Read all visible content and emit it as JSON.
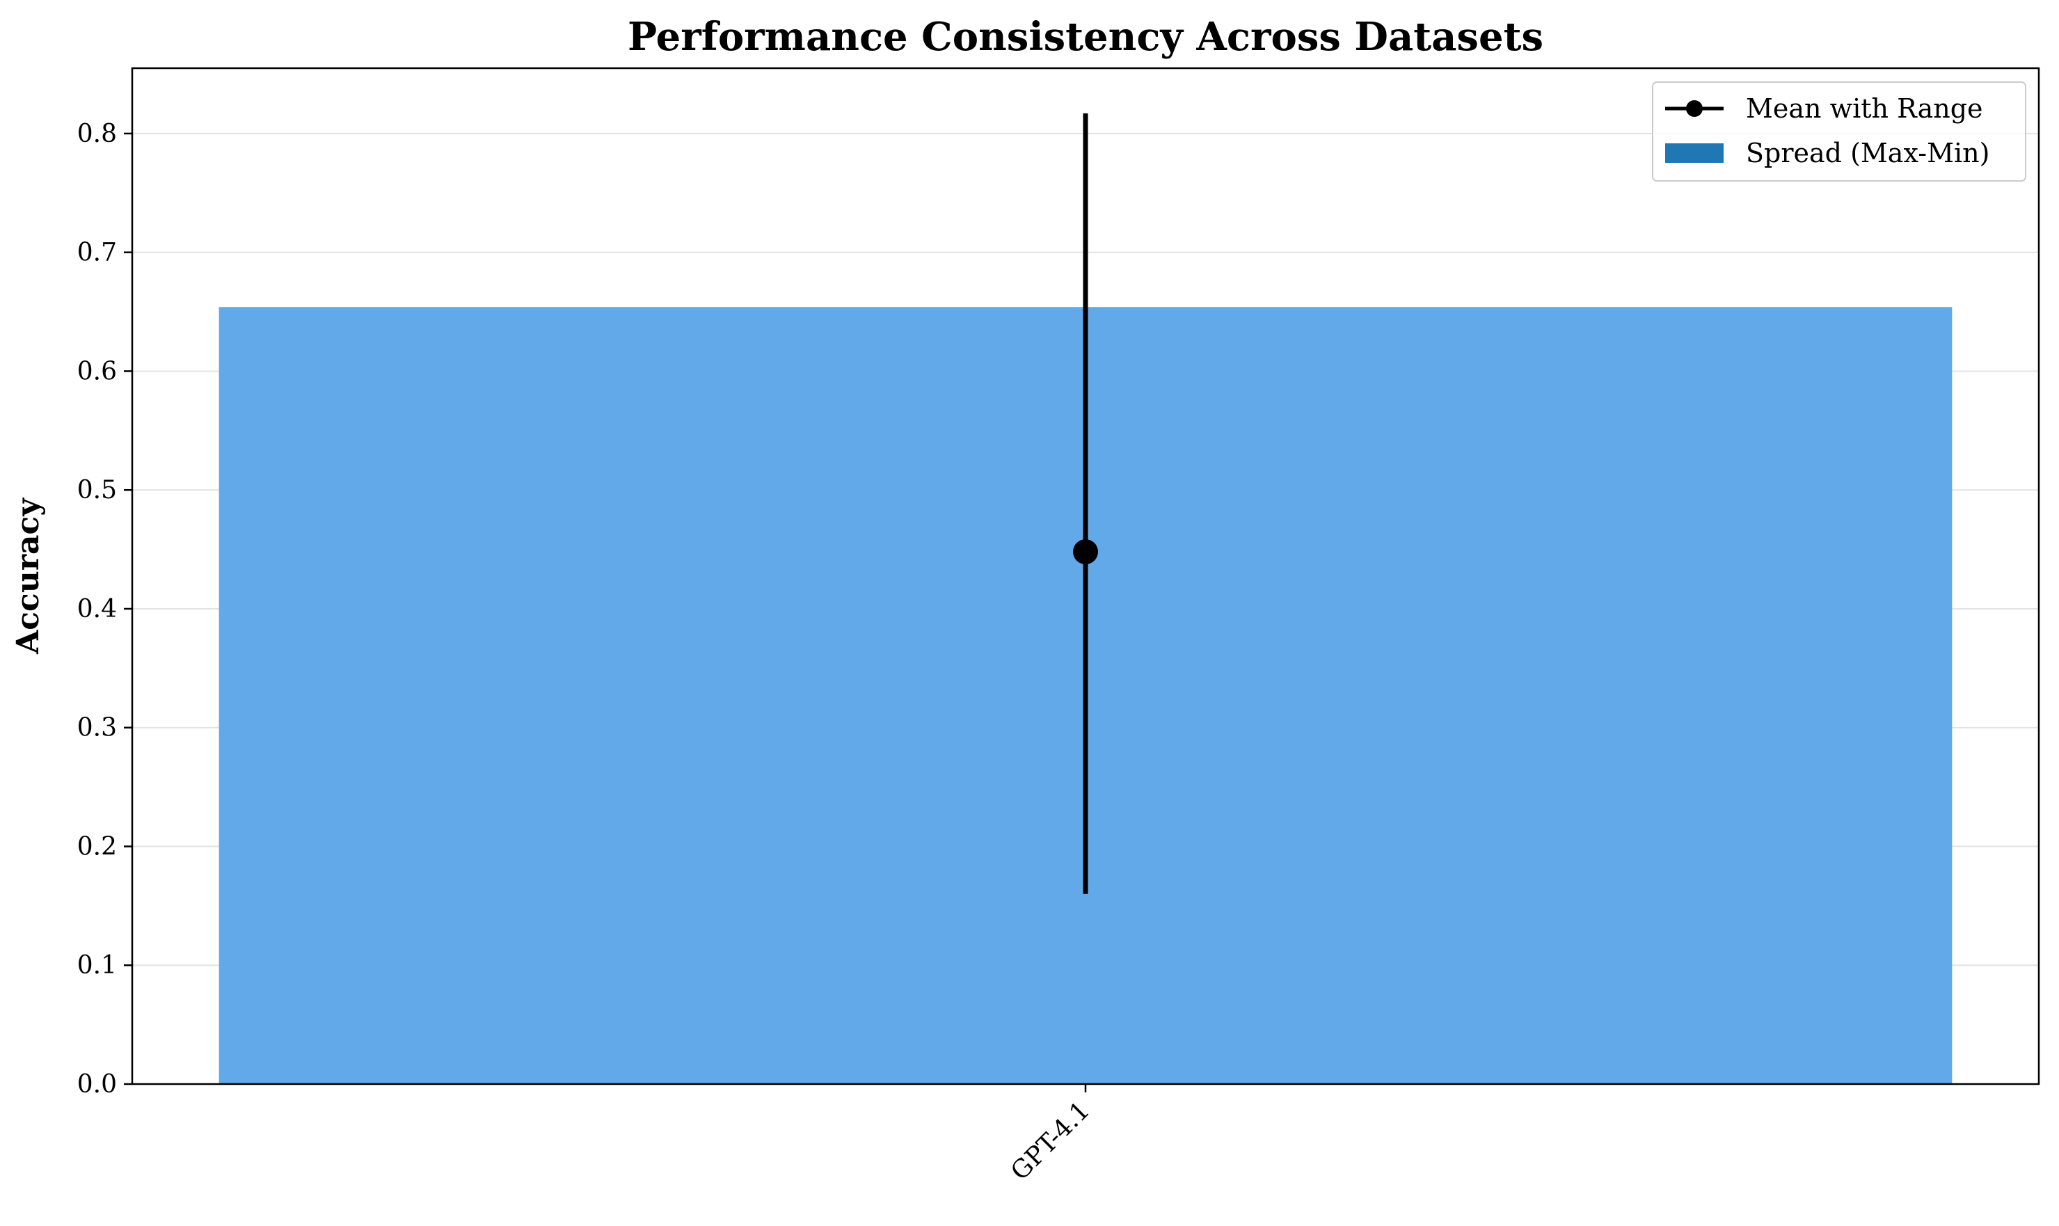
{
  "chart_data": {
    "type": "bar",
    "title": "Performance Consistency Across Datasets",
    "xlabel": "",
    "ylabel": "Accuracy",
    "categories": [
      "GPT-4.1"
    ],
    "series": [
      {
        "name": "Spread (Max-Min)",
        "kind": "bar",
        "color": "#62a9e9",
        "legend_color": "#1f77b4",
        "values": [
          0.654
        ]
      },
      {
        "name": "Mean with Range",
        "kind": "point-with-range",
        "color": "#000000",
        "values": [
          0.448
        ],
        "min": [
          0.16
        ],
        "max": [
          0.817
        ]
      }
    ],
    "ylim": [
      0,
      0.855
    ],
    "yticks": [
      0.0,
      0.1,
      0.2,
      0.3,
      0.4,
      0.5,
      0.6,
      0.7,
      0.8
    ],
    "ytick_labels": [
      "0.0",
      "0.1",
      "0.2",
      "0.3",
      "0.4",
      "0.5",
      "0.6",
      "0.7",
      "0.8"
    ],
    "xtick_labels": [
      "GPT-4.1"
    ],
    "xtick_rotation": 45,
    "grid": "horizontal",
    "legend_position": "top-right",
    "legend": [
      "Mean with Range",
      "Spread (Max-Min)"
    ]
  }
}
